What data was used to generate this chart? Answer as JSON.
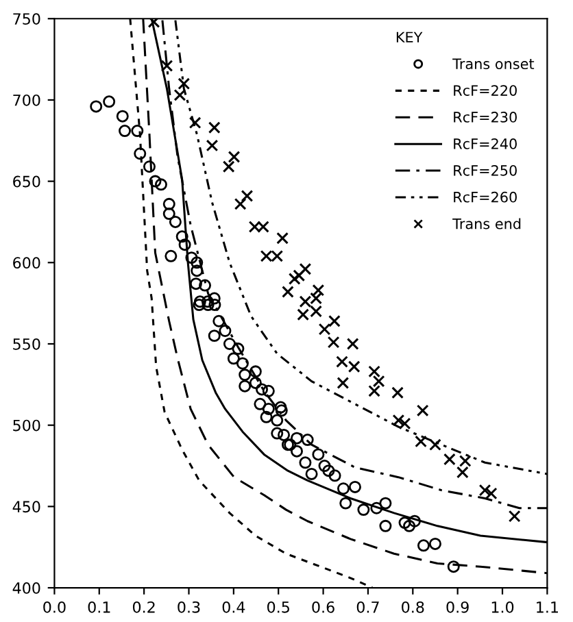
{
  "chart_data": {
    "type": "scatter",
    "legend_title": "KEY",
    "legend": "top right",
    "xlim": [
      0.0,
      1.1
    ],
    "xticks": [
      {
        "value": 0.0,
        "label": "0.0"
      },
      0.1,
      0.2,
      0.3,
      0.4,
      0.5,
      0.6,
      0.7,
      0.8,
      0.9,
      {
        "value": 1.0,
        "label": "1.0"
      },
      1.1
    ],
    "ylim": [
      400,
      750
    ],
    "yticks": [
      400,
      450,
      500,
      550,
      600,
      650,
      700,
      750
    ],
    "grid": false,
    "series": [
      {
        "name": "Trans onset",
        "marker": "circle",
        "color": "#000000",
        "x": [
          0.093,
          0.122,
          0.152,
          0.157,
          0.185,
          0.191,
          0.212,
          0.225,
          0.238,
          0.256,
          0.256,
          0.27,
          0.285,
          0.291,
          0.26,
          0.306,
          0.318,
          0.318,
          0.316,
          0.336,
          0.325,
          0.342,
          0.357,
          0.323,
          0.343,
          0.358,
          0.367,
          0.381,
          0.357,
          0.391,
          0.41,
          0.4,
          0.42,
          0.425,
          0.449,
          0.449,
          0.425,
          0.463,
          0.478,
          0.459,
          0.478,
          0.507,
          0.473,
          0.497,
          0.497,
          0.512,
          0.521,
          0.505,
          0.526,
          0.541,
          0.565,
          0.541,
          0.56,
          0.574,
          0.589,
          0.603,
          0.612,
          0.626,
          0.645,
          0.671,
          0.65,
          0.69,
          0.719,
          0.739,
          0.739,
          0.782,
          0.804,
          0.792,
          0.824,
          0.85,
          0.891
        ],
        "values": [
          696,
          699,
          690,
          681,
          681,
          667,
          659,
          650,
          648,
          636,
          630,
          625,
          616,
          611,
          604,
          603,
          600,
          595,
          587,
          586,
          576,
          576,
          578,
          574,
          574,
          574,
          564,
          558,
          555,
          550,
          547,
          541,
          538,
          531,
          533,
          526,
          524,
          522,
          521,
          513,
          510,
          509,
          505,
          503,
          495,
          494,
          488,
          511,
          488,
          492,
          491,
          484,
          477,
          470,
          482,
          475,
          472,
          469,
          461,
          462,
          452,
          448,
          449,
          452,
          438,
          440,
          441,
          438,
          426,
          427,
          413
        ]
      },
      {
        "name": "RcF=220",
        "type": "line",
        "line_style": "dashed",
        "color": "#000000",
        "x": [
          0.169,
          0.191,
          0.207,
          0.217,
          0.227,
          0.246,
          0.285,
          0.323,
          0.391,
          0.449,
          0.517,
          0.565,
          0.661,
          0.71
        ],
        "values": [
          750,
          679,
          595,
          578,
          536,
          508,
          485,
          466,
          446,
          432,
          421,
          416,
          406,
          400
        ]
      },
      {
        "name": "RcF=230",
        "type": "line",
        "line_style": "long_dashed",
        "color": "#000000",
        "x": [
          0.198,
          0.212,
          0.225,
          0.256,
          0.275,
          0.304,
          0.343,
          0.401,
          0.468,
          0.517,
          0.565,
          0.661,
          0.758,
          0.855,
          0.951,
          1.1
        ],
        "values": [
          750,
          679,
          606,
          564,
          541,
          510,
          488,
          468,
          457,
          448,
          441,
          430,
          421,
          415,
          413,
          409
        ]
      },
      {
        "name": "RcF=240",
        "type": "line",
        "line_style": "solid",
        "color": "#000000",
        "x": [
          0.217,
          0.251,
          0.285,
          0.298,
          0.31,
          0.33,
          0.36,
          0.381,
          0.42,
          0.468,
          0.521,
          0.565,
          0.661,
          0.758,
          0.855,
          0.951,
          1.1
        ],
        "values": [
          750,
          707,
          651,
          600,
          565,
          540,
          520,
          510,
          496,
          482,
          472,
          466,
          455,
          446,
          438,
          432,
          428
        ]
      },
      {
        "name": "RcF=250",
        "type": "line",
        "line_style": "dashdot",
        "color": "#000000",
        "x": [
          0.241,
          0.256,
          0.275,
          0.304,
          0.343,
          0.41,
          0.468,
          0.517,
          0.574,
          0.671,
          0.768,
          0.864,
          0.961,
          1.038,
          1.1
        ],
        "values": [
          749,
          707,
          665,
          623,
          581,
          548,
          521,
          503,
          488,
          474,
          468,
          460,
          455,
          449,
          449
        ]
      },
      {
        "name": "RcF=260",
        "type": "line",
        "line_style": "dashdotdot",
        "color": "#000000",
        "x": [
          0.27,
          0.289,
          0.318,
          0.352,
          0.391,
          0.439,
          0.497,
          0.574,
          0.671,
          0.768,
          0.864,
          0.961,
          1.1
        ],
        "values": [
          749,
          707,
          679,
          637,
          600,
          567,
          544,
          527,
          513,
          499,
          488,
          477,
          470
        ]
      },
      {
        "name": "Trans end",
        "marker": "cross",
        "color": "#000000",
        "x": [
          0.222,
          0.251,
          0.28,
          0.289,
          0.314,
          0.357,
          0.352,
          0.389,
          0.401,
          0.415,
          0.43,
          0.447,
          0.466,
          0.473,
          0.497,
          0.509,
          0.521,
          0.536,
          0.56,
          0.546,
          0.589,
          0.584,
          0.56,
          0.555,
          0.584,
          0.603,
          0.625,
          0.623,
          0.666,
          0.642,
          0.669,
          0.644,
          0.714,
          0.724,
          0.714,
          0.766,
          0.768,
          0.782,
          0.822,
          0.818,
          0.85,
          0.882,
          0.917,
          0.911,
          0.961,
          0.975,
          1.027
        ],
        "values": [
          748,
          721,
          703,
          710,
          686,
          683,
          672,
          659,
          665,
          636,
          641,
          622,
          622,
          604,
          604,
          615,
          582,
          590,
          596,
          592,
          583,
          578,
          576,
          568,
          570,
          559,
          564,
          551,
          550,
          539,
          536,
          526,
          533,
          527,
          521,
          520,
          503,
          501,
          509,
          490,
          488,
          479,
          478,
          471,
          460,
          458,
          444
        ]
      }
    ]
  }
}
